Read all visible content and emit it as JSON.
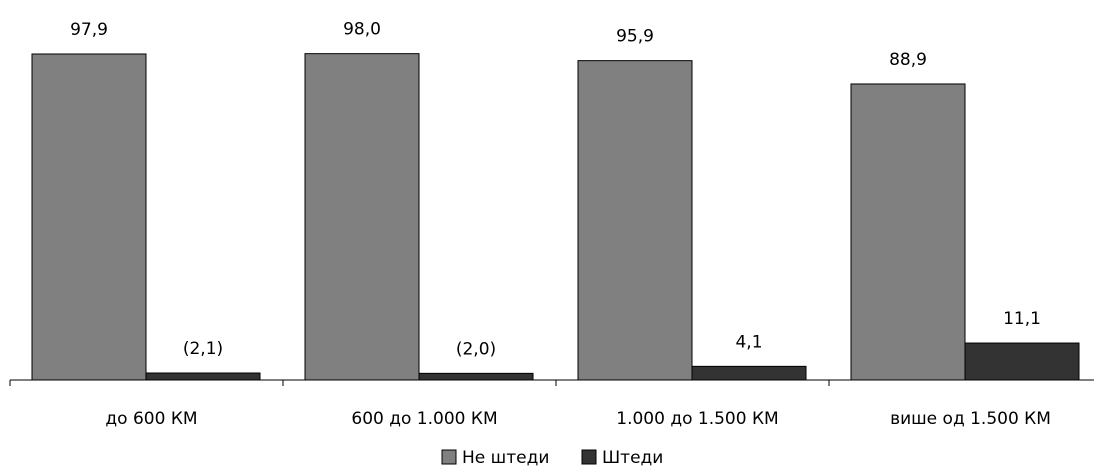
{
  "chart_data": {
    "type": "bar",
    "categories": [
      "до 600 КМ",
      "600 до 1.000 КМ",
      "1.000 до 1.500 КМ",
      "више од 1.500 КМ"
    ],
    "series": [
      {
        "name": "Не штеди",
        "values": [
          97.9,
          98.0,
          95.9,
          88.9
        ],
        "labels": [
          "97,9",
          "98,0",
          "95,9",
          "88,9"
        ],
        "color": "#808080"
      },
      {
        "name": "Штеди",
        "values": [
          2.1,
          2.0,
          4.1,
          11.1
        ],
        "labels": [
          "(2,1)",
          "(2,0)",
          "4,1",
          "11,1"
        ],
        "color": "#333333"
      }
    ],
    "ylim": [
      0,
      100
    ],
    "grid": false,
    "legend_position": "bottom"
  }
}
